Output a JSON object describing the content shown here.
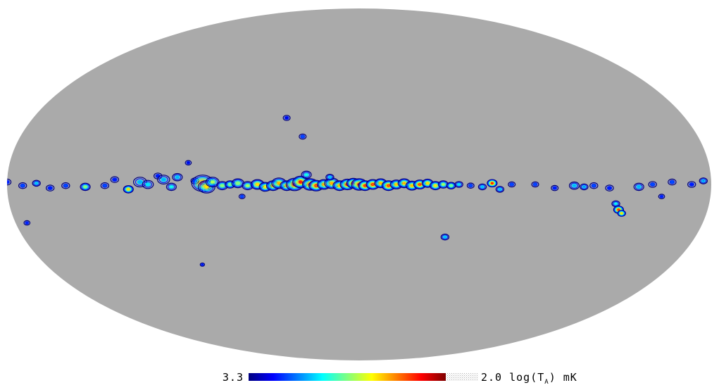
{
  "map": {
    "projection": "mollweide",
    "background_color": "#ffffff",
    "disk_color": "#aaaaaa",
    "colormap": [
      "#00007f",
      "#0000ff",
      "#007fff",
      "#00ffff",
      "#7fff7f",
      "#ffff00",
      "#ff7f00",
      "#ff0000",
      "#7f0000"
    ]
  },
  "colorbar": {
    "min_label": "3.3",
    "max_label_value": "2.0",
    "quantity_prefix": "log(T",
    "quantity_subscript": "A",
    "quantity_suffix": ") mK"
  },
  "sources": [
    {
      "lon": 180,
      "lat": 1.0,
      "size": 1.0,
      "level": 0.15
    },
    {
      "lon": 172,
      "lat": -0.5,
      "size": 1.0,
      "level": 0.2
    },
    {
      "lon": 165,
      "lat": 0.5,
      "size": 1.0,
      "level": 0.3
    },
    {
      "lon": 158,
      "lat": -1.5,
      "size": 1.0,
      "level": 0.15
    },
    {
      "lon": 150,
      "lat": -0.5,
      "size": 1.0,
      "level": 0.2
    },
    {
      "lon": 140,
      "lat": -1.0,
      "size": 1.2,
      "level": 0.5
    },
    {
      "lon": 130,
      "lat": -0.5,
      "size": 1.0,
      "level": 0.2
    },
    {
      "lon": 125,
      "lat": 2.0,
      "size": 1.0,
      "level": 0.15
    },
    {
      "lon": 118,
      "lat": -2.0,
      "size": 1.2,
      "level": 0.6
    },
    {
      "lon": 112,
      "lat": 1.0,
      "size": 1.5,
      "level": 0.3
    },
    {
      "lon": 108,
      "lat": 0.0,
      "size": 1.3,
      "level": 0.35
    },
    {
      "lon": 103,
      "lat": 3.5,
      "size": 1.0,
      "level": 0.15
    },
    {
      "lon": 100,
      "lat": 2.0,
      "size": 1.4,
      "level": 0.3
    },
    {
      "lon": 96,
      "lat": -1.0,
      "size": 1.2,
      "level": 0.4
    },
    {
      "lon": 93,
      "lat": 3.0,
      "size": 1.2,
      "level": 0.3
    },
    {
      "lon": 88,
      "lat": 9.0,
      "size": 0.8,
      "level": 0.1
    },
    {
      "lon": 84,
      "lat": 1.5,
      "size": 1.0,
      "level": 0.2
    },
    {
      "lon": 80,
      "lat": 0.5,
      "size": 2.2,
      "level": 0.75
    },
    {
      "lon": 78,
      "lat": -1.0,
      "size": 1.8,
      "level": 0.65
    },
    {
      "lon": 75,
      "lat": 1.0,
      "size": 1.5,
      "level": 0.55
    },
    {
      "lon": 70,
      "lat": -0.5,
      "size": 1.3,
      "level": 0.5
    },
    {
      "lon": 66,
      "lat": 0.0,
      "size": 1.2,
      "level": 0.45
    },
    {
      "lon": 62,
      "lat": 0.5,
      "size": 1.4,
      "level": 0.5
    },
    {
      "lon": 57,
      "lat": -0.5,
      "size": 1.3,
      "level": 0.55
    },
    {
      "lon": 52,
      "lat": 0.0,
      "size": 1.5,
      "level": 0.65
    },
    {
      "lon": 48,
      "lat": -1.0,
      "size": 1.4,
      "level": 0.6
    },
    {
      "lon": 44,
      "lat": -0.5,
      "size": 1.5,
      "level": 0.7
    },
    {
      "lon": 41,
      "lat": 0.5,
      "size": 1.6,
      "level": 0.72
    },
    {
      "lon": 37,
      "lat": -0.5,
      "size": 1.5,
      "level": 0.7
    },
    {
      "lon": 33,
      "lat": 0.0,
      "size": 1.8,
      "level": 0.82
    },
    {
      "lon": 30,
      "lat": 1.0,
      "size": 1.7,
      "level": 0.85
    },
    {
      "lon": 27,
      "lat": 4.0,
      "size": 1.2,
      "level": 0.4
    },
    {
      "lon": 25,
      "lat": 0.0,
      "size": 1.7,
      "level": 0.8
    },
    {
      "lon": 22,
      "lat": -0.5,
      "size": 1.6,
      "level": 0.75
    },
    {
      "lon": 18,
      "lat": 0.0,
      "size": 1.5,
      "level": 0.7
    },
    {
      "lon": 14,
      "lat": 0.5,
      "size": 1.6,
      "level": 0.72
    },
    {
      "lon": 10,
      "lat": -0.5,
      "size": 1.5,
      "level": 0.7
    },
    {
      "lon": 6,
      "lat": 0.0,
      "size": 1.6,
      "level": 0.78
    },
    {
      "lon": 3,
      "lat": 0.5,
      "size": 1.5,
      "level": 0.85
    },
    {
      "lon": 0,
      "lat": 0.0,
      "size": 1.7,
      "level": 0.9
    },
    {
      "lon": -3,
      "lat": -0.5,
      "size": 1.5,
      "level": 0.8
    },
    {
      "lon": -7,
      "lat": 0.0,
      "size": 1.5,
      "level": 0.75
    },
    {
      "lon": -11,
      "lat": 0.5,
      "size": 1.4,
      "level": 0.7
    },
    {
      "lon": -15,
      "lat": -0.5,
      "size": 1.5,
      "level": 0.75
    },
    {
      "lon": -19,
      "lat": 0.0,
      "size": 1.4,
      "level": 0.68
    },
    {
      "lon": -23,
      "lat": 0.5,
      "size": 1.4,
      "level": 0.72
    },
    {
      "lon": -27,
      "lat": -0.5,
      "size": 1.4,
      "level": 0.7
    },
    {
      "lon": -31,
      "lat": 0.0,
      "size": 1.4,
      "level": 0.75
    },
    {
      "lon": -35,
      "lat": 0.5,
      "size": 1.3,
      "level": 0.65
    },
    {
      "lon": -39,
      "lat": -0.5,
      "size": 1.3,
      "level": 0.6
    },
    {
      "lon": -43,
      "lat": 0.0,
      "size": 1.2,
      "level": 0.55
    },
    {
      "lon": -47,
      "lat": -0.5,
      "size": 1.1,
      "level": 0.45
    },
    {
      "lon": -51,
      "lat": 0.0,
      "size": 1.0,
      "level": 0.35
    },
    {
      "lon": -57,
      "lat": -0.5,
      "size": 0.9,
      "level": 0.2
    },
    {
      "lon": -63,
      "lat": -1.0,
      "size": 1.0,
      "level": 0.3
    },
    {
      "lon": -68,
      "lat": 0.5,
      "size": 1.2,
      "level": 0.85
    },
    {
      "lon": -72,
      "lat": -2.0,
      "size": 1.0,
      "level": 0.3
    },
    {
      "lon": -78,
      "lat": 0.0,
      "size": 0.9,
      "level": 0.2
    },
    {
      "lon": -90,
      "lat": 0.0,
      "size": 0.9,
      "level": 0.2
    },
    {
      "lon": -100,
      "lat": -1.5,
      "size": 0.9,
      "level": 0.15
    },
    {
      "lon": -110,
      "lat": -0.5,
      "size": 1.2,
      "level": 0.3
    },
    {
      "lon": -115,
      "lat": -1.0,
      "size": 1.0,
      "level": 0.25
    },
    {
      "lon": -120,
      "lat": -0.5,
      "size": 1.0,
      "level": 0.2
    },
    {
      "lon": -128,
      "lat": -1.5,
      "size": 1.0,
      "level": 0.15
    },
    {
      "lon": -132,
      "lat": -8.0,
      "size": 1.0,
      "level": 0.4
    },
    {
      "lon": -134,
      "lat": -10.5,
      "size": 1.2,
      "level": 0.8
    },
    {
      "lon": -136,
      "lat": -12.0,
      "size": 1.0,
      "level": 0.6
    },
    {
      "lon": -143,
      "lat": -1.0,
      "size": 1.2,
      "level": 0.3
    },
    {
      "lon": -150,
      "lat": 0.0,
      "size": 1.0,
      "level": 0.2
    },
    {
      "lon": -155,
      "lat": -5.0,
      "size": 0.8,
      "level": 0.15
    },
    {
      "lon": -160,
      "lat": 1.0,
      "size": 1.0,
      "level": 0.2
    },
    {
      "lon": -170,
      "lat": 0.0,
      "size": 1.0,
      "level": 0.15
    },
    {
      "lon": -176,
      "lat": 1.5,
      "size": 1.0,
      "level": 0.25
    },
    {
      "lon": 40,
      "lat": 28.0,
      "size": 0.9,
      "level": 0.1
    },
    {
      "lon": 30,
      "lat": 20.0,
      "size": 0.9,
      "level": 0.2
    },
    {
      "lon": 15,
      "lat": 3.0,
      "size": 1.0,
      "level": 0.3
    },
    {
      "lon": 60,
      "lat": -5.0,
      "size": 0.8,
      "level": 0.2
    },
    {
      "lon": -46,
      "lat": -22.0,
      "size": 1.0,
      "level": 0.3
    },
    {
      "lon": 90,
      "lat": -34.0,
      "size": 0.6,
      "level": 0.1
    },
    {
      "lon": 174,
      "lat": -16.0,
      "size": 0.8,
      "level": 0.15
    }
  ]
}
